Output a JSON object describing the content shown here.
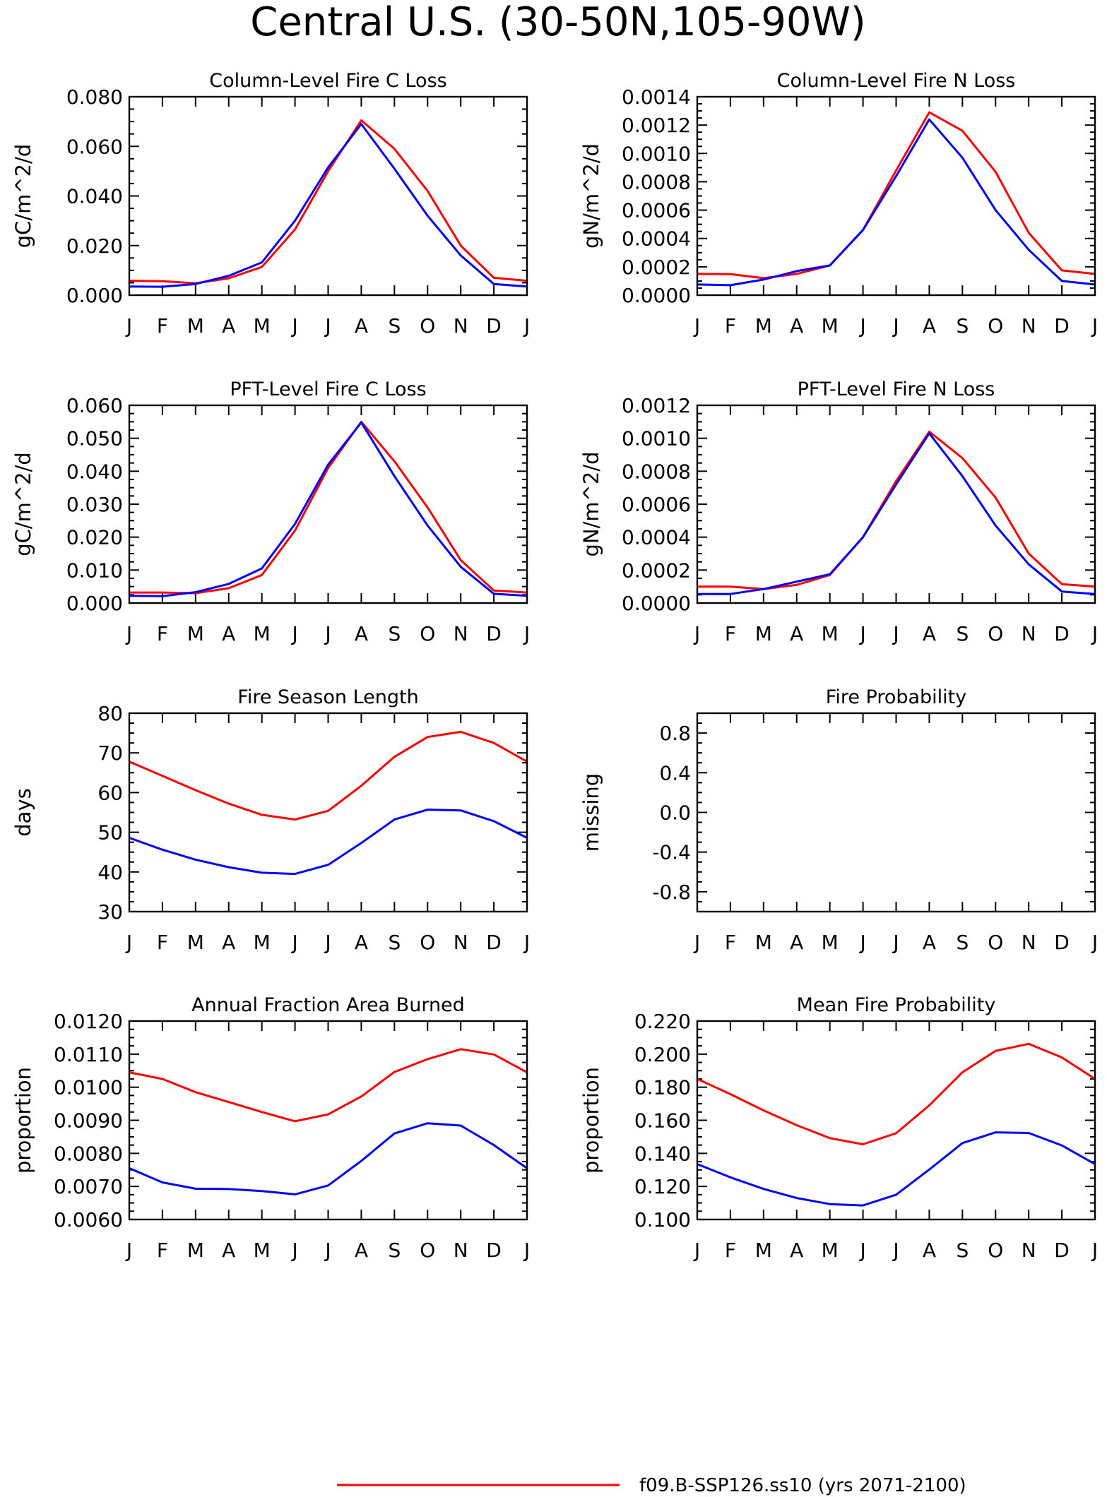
{
  "figure": {
    "title": "Central U.S. (30-50N,105-90W)"
  },
  "colors": {
    "red": "#ff0000",
    "blue": "#0000ff"
  },
  "legend": {
    "entries": [
      {
        "color": "#ff0000",
        "label": "f09.B-SSP126.ss10 (yrs 2071-2100)"
      }
    ]
  },
  "chart_data": [
    {
      "type": "line",
      "title": "Column-Level Fire C Loss",
      "ylabel": "gC/m^2/d",
      "xlabel": "",
      "categories": [
        "J",
        "F",
        "M",
        "A",
        "M",
        "J",
        "J",
        "A",
        "S",
        "O",
        "N",
        "D",
        "J"
      ],
      "ylim": [
        0,
        0.08
      ],
      "yticks": [
        0,
        0.02,
        0.04,
        0.06,
        0.08
      ],
      "ytick_labels": [
        "0.000",
        "0.020",
        "0.040",
        "0.060",
        "0.080"
      ],
      "series": [
        {
          "color": "#ff0000",
          "values": [
            0.0058,
            0.0056,
            0.0048,
            0.0068,
            0.0114,
            0.0265,
            0.05,
            0.0705,
            0.059,
            0.042,
            0.02,
            0.007,
            0.0058
          ]
        },
        {
          "color": "#0000ff",
          "values": [
            0.0035,
            0.0034,
            0.0045,
            0.0078,
            0.0132,
            0.03,
            0.0515,
            0.069,
            0.051,
            0.032,
            0.016,
            0.0045,
            0.0035
          ]
        }
      ]
    },
    {
      "type": "line",
      "title": "Column-Level Fire N Loss",
      "ylabel": "gN/m^2/d",
      "xlabel": "",
      "categories": [
        "J",
        "F",
        "M",
        "A",
        "M",
        "J",
        "J",
        "A",
        "S",
        "O",
        "N",
        "D",
        "J"
      ],
      "ylim": [
        0,
        0.0014
      ],
      "yticks": [
        0,
        0.0002,
        0.0004,
        0.0006,
        0.0008,
        0.001,
        0.0012,
        0.0014
      ],
      "ytick_labels": [
        "0.0000",
        "0.0002",
        "0.0004",
        "0.0006",
        "0.0008",
        "0.0010",
        "0.0012",
        "0.0014"
      ],
      "series": [
        {
          "color": "#ff0000",
          "values": [
            0.00015,
            0.000148,
            0.00012,
            0.00015,
            0.00021,
            0.00046,
            0.00088,
            0.00129,
            0.00116,
            0.00087,
            0.00044,
            0.000175,
            0.00015
          ]
        },
        {
          "color": "#0000ff",
          "values": [
            7.5e-05,
            7e-05,
            0.00011,
            0.00017,
            0.00021,
            0.00046,
            0.00084,
            0.00124,
            0.00097,
            0.0006,
            0.00032,
            0.0001,
            7.5e-05
          ]
        }
      ]
    },
    {
      "type": "line",
      "title": "PFT-Level Fire C Loss",
      "ylabel": "gC/m^2/d",
      "xlabel": "",
      "categories": [
        "J",
        "F",
        "M",
        "A",
        "M",
        "J",
        "J",
        "A",
        "S",
        "O",
        "N",
        "D",
        "J"
      ],
      "ylim": [
        0,
        0.06
      ],
      "yticks": [
        0,
        0.01,
        0.02,
        0.03,
        0.04,
        0.05,
        0.06
      ],
      "ytick_labels": [
        "0.000",
        "0.010",
        "0.020",
        "0.030",
        "0.040",
        "0.050",
        "0.060"
      ],
      "series": [
        {
          "color": "#ff0000",
          "values": [
            0.0032,
            0.0032,
            0.003,
            0.0045,
            0.0085,
            0.022,
            0.041,
            0.055,
            0.043,
            0.029,
            0.013,
            0.0038,
            0.0032
          ]
        },
        {
          "color": "#0000ff",
          "values": [
            0.0022,
            0.0021,
            0.0033,
            0.0058,
            0.0105,
            0.024,
            0.042,
            0.0548,
            0.0385,
            0.0235,
            0.011,
            0.0028,
            0.0022
          ]
        }
      ]
    },
    {
      "type": "line",
      "title": "PFT-Level Fire N Loss",
      "ylabel": "gN/m^2/d",
      "xlabel": "",
      "categories": [
        "J",
        "F",
        "M",
        "A",
        "M",
        "J",
        "J",
        "A",
        "S",
        "O",
        "N",
        "D",
        "J"
      ],
      "ylim": [
        0,
        0.0012
      ],
      "yticks": [
        0,
        0.0002,
        0.0004,
        0.0006,
        0.0008,
        0.001,
        0.0012
      ],
      "ytick_labels": [
        "0.0000",
        "0.0002",
        "0.0004",
        "0.0006",
        "0.0008",
        "0.0010",
        "0.0012"
      ],
      "series": [
        {
          "color": "#ff0000",
          "values": [
            0.0001,
            0.0001,
            8.5e-05,
            0.00011,
            0.00017,
            0.0004,
            0.00074,
            0.00104,
            0.00088,
            0.00064,
            0.0003,
            0.000115,
            0.0001
          ]
        },
        {
          "color": "#0000ff",
          "values": [
            5.5e-05,
            5.5e-05,
            8.5e-05,
            0.00013,
            0.000175,
            0.0004,
            0.00072,
            0.00103,
            0.00077,
            0.00047,
            0.000235,
            7e-05,
            5.5e-05
          ]
        }
      ]
    },
    {
      "type": "line",
      "title": "Fire Season Length",
      "ylabel": "days",
      "xlabel": "",
      "categories": [
        "J",
        "F",
        "M",
        "A",
        "M",
        "J",
        "J",
        "A",
        "S",
        "O",
        "N",
        "D",
        "J"
      ],
      "ylim": [
        30,
        80
      ],
      "yticks": [
        30,
        40,
        50,
        60,
        70,
        80
      ],
      "ytick_labels": [
        "30",
        "40",
        "50",
        "60",
        "70",
        "80"
      ],
      "series": [
        {
          "color": "#ff0000",
          "values": [
            67.8,
            64.2,
            60.6,
            57.2,
            54.4,
            53.2,
            55.4,
            61.7,
            69.0,
            74.0,
            75.3,
            72.5,
            67.8
          ]
        },
        {
          "color": "#0000ff",
          "values": [
            48.6,
            45.6,
            43.1,
            41.2,
            39.8,
            39.5,
            41.8,
            47.3,
            53.2,
            55.7,
            55.5,
            52.8,
            48.6
          ]
        }
      ]
    },
    {
      "type": "line",
      "title": "Fire Probability",
      "ylabel": "missing",
      "xlabel": "",
      "categories": [
        "J",
        "F",
        "M",
        "A",
        "M",
        "J",
        "J",
        "A",
        "S",
        "O",
        "N",
        "D",
        "J"
      ],
      "ylim": [
        -1,
        1
      ],
      "yticks": [
        -0.8,
        -0.4,
        0,
        0.4,
        0.8
      ],
      "ytick_labels": [
        "-0.8",
        "-0.4",
        "0.0",
        "0.4",
        "0.8"
      ],
      "series": []
    },
    {
      "type": "line",
      "title": "Annual Fraction Area Burned",
      "ylabel": "proportion",
      "xlabel": "",
      "categories": [
        "J",
        "F",
        "M",
        "A",
        "M",
        "J",
        "J",
        "A",
        "S",
        "O",
        "N",
        "D",
        "J"
      ],
      "ylim": [
        0.006,
        0.012
      ],
      "yticks": [
        0.006,
        0.007,
        0.008,
        0.009,
        0.01,
        0.011,
        0.012
      ],
      "ytick_labels": [
        "0.0060",
        "0.0070",
        "0.0080",
        "0.0090",
        "0.0100",
        "0.0110",
        "0.0120"
      ],
      "series": [
        {
          "color": "#ff0000",
          "values": [
            0.01045,
            0.01025,
            0.00985,
            0.00955,
            0.00925,
            0.00897,
            0.00918,
            0.00972,
            0.01046,
            0.01085,
            0.01115,
            0.01099,
            0.01045
          ]
        },
        {
          "color": "#0000ff",
          "values": [
            0.00755,
            0.00712,
            0.00693,
            0.00692,
            0.00686,
            0.00676,
            0.00703,
            0.00777,
            0.0086,
            0.00891,
            0.00884,
            0.00825,
            0.00755
          ]
        }
      ]
    },
    {
      "type": "line",
      "title": "Mean Fire Probability",
      "ylabel": "proportion",
      "xlabel": "",
      "categories": [
        "J",
        "F",
        "M",
        "A",
        "M",
        "J",
        "J",
        "A",
        "S",
        "O",
        "N",
        "D",
        "J"
      ],
      "ylim": [
        0.1,
        0.22
      ],
      "yticks": [
        0.1,
        0.12,
        0.14,
        0.16,
        0.18,
        0.2,
        0.22
      ],
      "ytick_labels": [
        "0.100",
        "0.120",
        "0.140",
        "0.160",
        "0.180",
        "0.200",
        "0.220"
      ],
      "series": [
        {
          "color": "#ff0000",
          "values": [
            0.185,
            0.1758,
            0.166,
            0.157,
            0.1492,
            0.1455,
            0.1522,
            0.169,
            0.189,
            0.202,
            0.2062,
            0.198,
            0.185
          ]
        },
        {
          "color": "#0000ff",
          "values": [
            0.1335,
            0.1255,
            0.1185,
            0.113,
            0.1093,
            0.1085,
            0.115,
            0.1302,
            0.1462,
            0.1527,
            0.1523,
            0.1448,
            0.1335
          ]
        }
      ]
    }
  ]
}
